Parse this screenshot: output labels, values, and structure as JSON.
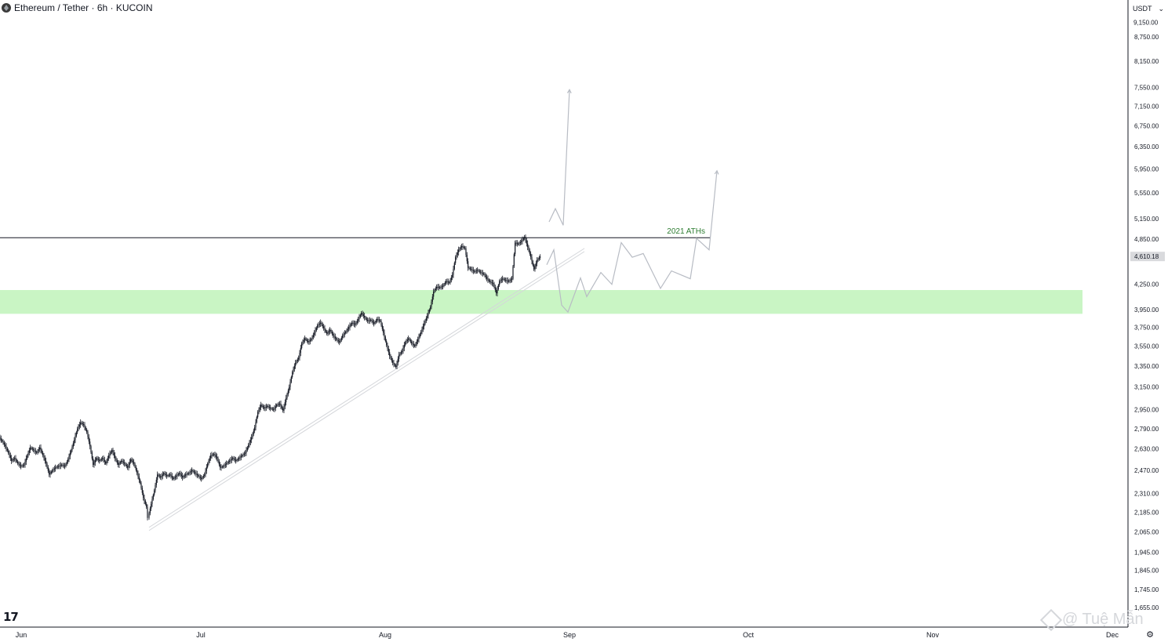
{
  "header": {
    "symbol": "Ethereum / Tether · 6h · KUCOIN"
  },
  "price_scale": {
    "currency_label": "USDT",
    "current_price_label": "4,610.18"
  },
  "annotations": {
    "ath_label": "2021 ATHs"
  },
  "watermark": {
    "text": "@ Tuệ Mẫn"
  },
  "branding": {
    "logo_text": "17"
  },
  "colors": {
    "support_zone": "#c9f5c4",
    "candle": "#131722",
    "projection": "#b8bcc4",
    "ath_label": "#2e7d32",
    "price_tag_bg": "#d9dadd"
  },
  "chart_data": {
    "type": "candlestick",
    "title": "Ethereum / Tether · 6h · KUCOIN",
    "y_ticks": [
      "8,750.00",
      "8,150.00",
      "7,550.00",
      "7,150.00",
      "6,750.00",
      "6,350.00",
      "5,950.00",
      "5,550.00",
      "5,150.00",
      "4,850.00",
      "4,250.00",
      "3,950.00",
      "3,750.00",
      "3,550.00",
      "3,350.00",
      "3,150.00",
      "2,950.00",
      "2,790.00",
      "2,630.00",
      "2,470.00",
      "2,310.00",
      "2,185.00",
      "2,065.00",
      "1,945.00",
      "1,845.00",
      "1,745.00",
      "1,655.00"
    ],
    "x_ticks": [
      "Jun",
      "Jul",
      "Aug",
      "Sep",
      "Oct",
      "Nov",
      "Dec"
    ],
    "log_scale": true,
    "ath_level": 4870,
    "support_zone": [
      3900,
      4180
    ],
    "last_price": 4610.18,
    "close_path": [
      [
        0,
        2720
      ],
      [
        4,
        2690
      ],
      [
        8,
        2650
      ],
      [
        12,
        2600
      ],
      [
        16,
        2540
      ],
      [
        20,
        2560
      ],
      [
        24,
        2520
      ],
      [
        28,
        2500
      ],
      [
        32,
        2510
      ],
      [
        36,
        2580
      ],
      [
        40,
        2640
      ],
      [
        44,
        2620
      ],
      [
        48,
        2600
      ],
      [
        52,
        2640
      ],
      [
        56,
        2580
      ],
      [
        60,
        2520
      ],
      [
        64,
        2440
      ],
      [
        68,
        2470
      ],
      [
        72,
        2490
      ],
      [
        76,
        2500
      ],
      [
        80,
        2510
      ],
      [
        84,
        2500
      ],
      [
        88,
        2550
      ],
      [
        92,
        2620
      ],
      [
        96,
        2700
      ],
      [
        100,
        2790
      ],
      [
        104,
        2840
      ],
      [
        108,
        2820
      ],
      [
        112,
        2760
      ],
      [
        116,
        2650
      ],
      [
        120,
        2510
      ],
      [
        124,
        2560
      ],
      [
        128,
        2540
      ],
      [
        132,
        2560
      ],
      [
        136,
        2520
      ],
      [
        140,
        2580
      ],
      [
        144,
        2620
      ],
      [
        148,
        2560
      ],
      [
        152,
        2510
      ],
      [
        156,
        2540
      ],
      [
        160,
        2520
      ],
      [
        164,
        2490
      ],
      [
        168,
        2550
      ],
      [
        172,
        2520
      ],
      [
        176,
        2450
      ],
      [
        180,
        2380
      ],
      [
        184,
        2280
      ],
      [
        188,
        2220
      ],
      [
        190,
        2150
      ],
      [
        194,
        2240
      ],
      [
        198,
        2330
      ],
      [
        202,
        2440
      ],
      [
        206,
        2420
      ],
      [
        210,
        2450
      ],
      [
        214,
        2430
      ],
      [
        218,
        2440
      ],
      [
        222,
        2410
      ],
      [
        226,
        2430
      ],
      [
        230,
        2450
      ],
      [
        234,
        2420
      ],
      [
        238,
        2440
      ],
      [
        242,
        2450
      ],
      [
        246,
        2470
      ],
      [
        250,
        2450
      ],
      [
        254,
        2430
      ],
      [
        258,
        2410
      ],
      [
        262,
        2440
      ],
      [
        266,
        2520
      ],
      [
        270,
        2580
      ],
      [
        274,
        2590
      ],
      [
        278,
        2560
      ],
      [
        282,
        2490
      ],
      [
        286,
        2500
      ],
      [
        290,
        2520
      ],
      [
        294,
        2540
      ],
      [
        298,
        2560
      ],
      [
        302,
        2540
      ],
      [
        306,
        2560
      ],
      [
        310,
        2580
      ],
      [
        314,
        2600
      ],
      [
        318,
        2660
      ],
      [
        322,
        2720
      ],
      [
        326,
        2800
      ],
      [
        330,
        2930
      ],
      [
        334,
        2990
      ],
      [
        338,
        2960
      ],
      [
        342,
        2980
      ],
      [
        346,
        2960
      ],
      [
        350,
        2950
      ],
      [
        354,
        2990
      ],
      [
        358,
        3000
      ],
      [
        362,
        2940
      ],
      [
        366,
        3050
      ],
      [
        370,
        3150
      ],
      [
        374,
        3290
      ],
      [
        378,
        3380
      ],
      [
        382,
        3430
      ],
      [
        386,
        3580
      ],
      [
        390,
        3630
      ],
      [
        394,
        3590
      ],
      [
        398,
        3620
      ],
      [
        402,
        3690
      ],
      [
        406,
        3770
      ],
      [
        410,
        3800
      ],
      [
        414,
        3740
      ],
      [
        418,
        3680
      ],
      [
        422,
        3720
      ],
      [
        426,
        3660
      ],
      [
        430,
        3620
      ],
      [
        434,
        3590
      ],
      [
        438,
        3660
      ],
      [
        442,
        3700
      ],
      [
        446,
        3750
      ],
      [
        450,
        3800
      ],
      [
        454,
        3780
      ],
      [
        458,
        3840
      ],
      [
        462,
        3910
      ],
      [
        466,
        3860
      ],
      [
        470,
        3820
      ],
      [
        474,
        3830
      ],
      [
        478,
        3790
      ],
      [
        482,
        3840
      ],
      [
        486,
        3820
      ],
      [
        490,
        3690
      ],
      [
        494,
        3560
      ],
      [
        498,
        3450
      ],
      [
        502,
        3380
      ],
      [
        506,
        3340
      ],
      [
        510,
        3460
      ],
      [
        514,
        3500
      ],
      [
        518,
        3590
      ],
      [
        522,
        3630
      ],
      [
        526,
        3580
      ],
      [
        530,
        3550
      ],
      [
        534,
        3620
      ],
      [
        538,
        3700
      ],
      [
        542,
        3790
      ],
      [
        546,
        3880
      ],
      [
        550,
        3980
      ],
      [
        554,
        4160
      ],
      [
        558,
        4220
      ],
      [
        562,
        4210
      ],
      [
        566,
        4230
      ],
      [
        570,
        4290
      ],
      [
        574,
        4270
      ],
      [
        578,
        4370
      ],
      [
        582,
        4600
      ],
      [
        586,
        4700
      ],
      [
        590,
        4750
      ],
      [
        594,
        4720
      ],
      [
        598,
        4460
      ],
      [
        602,
        4440
      ],
      [
        606,
        4410
      ],
      [
        610,
        4430
      ],
      [
        614,
        4400
      ],
      [
        618,
        4380
      ],
      [
        622,
        4320
      ],
      [
        626,
        4280
      ],
      [
        630,
        4260
      ],
      [
        634,
        4140
      ],
      [
        638,
        4290
      ],
      [
        642,
        4320
      ],
      [
        646,
        4300
      ],
      [
        650,
        4290
      ],
      [
        654,
        4320
      ],
      [
        658,
        4800
      ],
      [
        662,
        4780
      ],
      [
        666,
        4820
      ],
      [
        670,
        4880
      ],
      [
        674,
        4740
      ],
      [
        678,
        4600
      ],
      [
        682,
        4440
      ],
      [
        686,
        4560
      ],
      [
        690,
        4610
      ]
    ],
    "projection_a": [
      [
        697,
        4500
      ],
      [
        706,
        4700
      ],
      [
        716,
        4000
      ],
      [
        724,
        3920
      ],
      [
        740,
        4330
      ],
      [
        748,
        4100
      ],
      [
        766,
        4400
      ],
      [
        780,
        4250
      ],
      [
        792,
        4800
      ],
      [
        806,
        4600
      ],
      [
        820,
        4650
      ],
      [
        842,
        4200
      ],
      [
        856,
        4420
      ],
      [
        880,
        4320
      ],
      [
        888,
        4860
      ],
      [
        904,
        4700
      ],
      [
        914,
        5920
      ]
    ],
    "projection_b": [
      [
        700,
        5100
      ],
      [
        708,
        5300
      ],
      [
        718,
        5050
      ],
      [
        726,
        7500
      ]
    ],
    "trendline": [
      [
        190,
        2150
      ],
      [
        745,
        4720
      ]
    ]
  }
}
